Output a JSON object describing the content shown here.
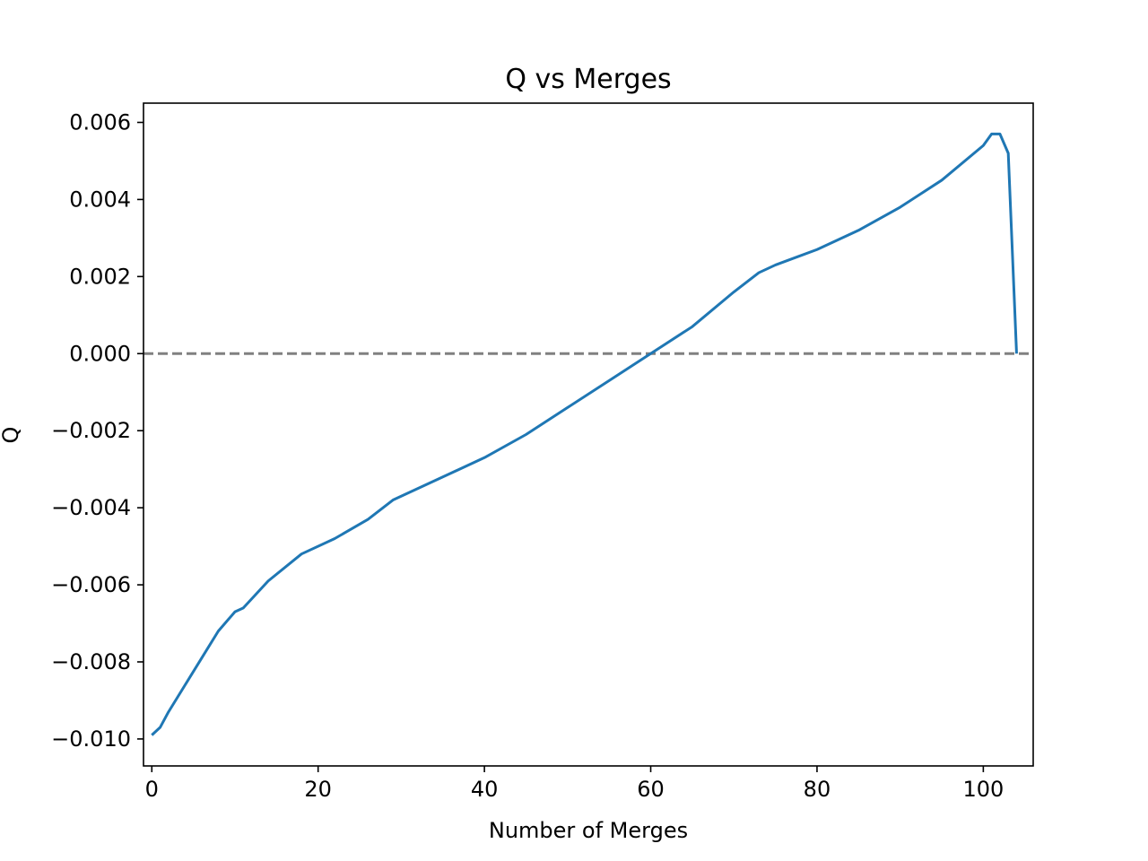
{
  "chart_data": {
    "type": "line",
    "title": "Q vs Merges",
    "xlabel": "Number of Merges",
    "ylabel": "Q",
    "xlim": [
      -1,
      106
    ],
    "ylim": [
      -0.0107,
      0.0065
    ],
    "xticks": [
      0,
      20,
      40,
      60,
      80,
      100
    ],
    "xtick_labels": [
      "0",
      "20",
      "40",
      "60",
      "80",
      "100"
    ],
    "yticks": [
      -0.01,
      -0.008,
      -0.006,
      -0.004,
      -0.002,
      0.0,
      0.002,
      0.004,
      0.006
    ],
    "ytick_labels": [
      "−0.010",
      "−0.008",
      "−0.006",
      "−0.004",
      "−0.002",
      "0.000",
      "0.002",
      "0.004",
      "0.006"
    ],
    "grid": false,
    "legend": "none",
    "reference_line": {
      "y": 0.0,
      "style": "dashed",
      "color": "#808080"
    },
    "series": [
      {
        "color": "#1f77b4",
        "x": [
          0,
          1,
          2,
          4,
          6,
          8,
          10,
          11,
          14,
          18,
          22,
          26,
          29,
          35,
          40,
          45,
          50,
          55,
          60,
          65,
          70,
          73,
          75,
          80,
          85,
          90,
          95,
          100,
          101,
          102,
          103,
          104
        ],
        "y": [
          -0.0099,
          -0.0097,
          -0.0093,
          -0.0086,
          -0.0079,
          -0.0072,
          -0.0067,
          -0.0066,
          -0.0059,
          -0.0052,
          -0.0048,
          -0.0043,
          -0.0038,
          -0.0032,
          -0.0027,
          -0.0021,
          -0.0014,
          -0.0007,
          0.0,
          0.0007,
          0.0016,
          0.0021,
          0.0023,
          0.0027,
          0.0032,
          0.0038,
          0.0045,
          0.0054,
          0.0057,
          0.0057,
          0.0052,
          0.0
        ]
      }
    ]
  }
}
